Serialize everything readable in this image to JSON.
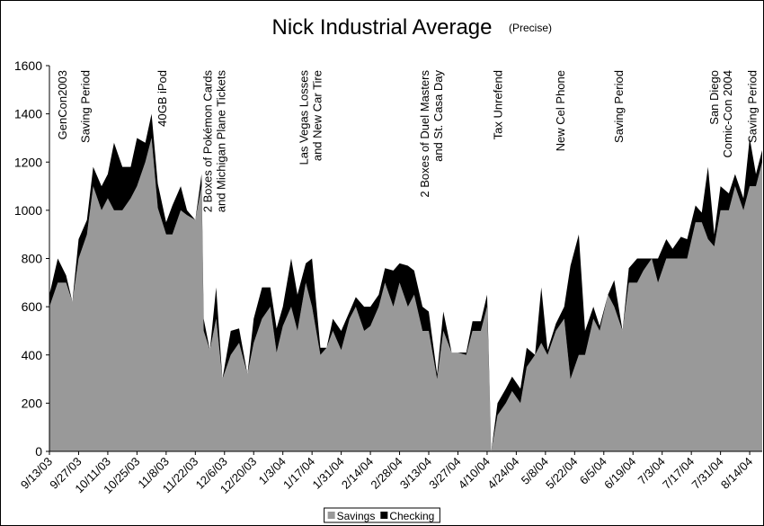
{
  "chart_data": {
    "type": "stacked_area",
    "title": "Nick Industrial Average",
    "subtitle": "(Precise)",
    "x": [
      "9/13/03",
      "9/17/03",
      "9/21/03",
      "9/24/03",
      "9/27/03",
      "10/1/03",
      "10/4/03",
      "10/8/03",
      "10/11/03",
      "10/14/03",
      "10/18/03",
      "10/22/03",
      "10/25/03",
      "10/29/03",
      "11/1/03",
      "11/4/03",
      "11/8/03",
      "11/11/03",
      "11/15/03",
      "11/18/03",
      "11/22/03",
      "11/25/03",
      "11/26/03",
      "11/29/03",
      "12/2/03",
      "12/5/03",
      "12/9/03",
      "12/13/03",
      "12/17/03",
      "12/20/03",
      "12/24/03",
      "12/28/03",
      "12/31/03",
      "1/3/04",
      "1/7/04",
      "1/10/04",
      "1/14/04",
      "1/17/04",
      "1/21/04",
      "1/24/04",
      "1/27/04",
      "1/31/04",
      "2/4/04",
      "2/7/04",
      "2/11/04",
      "2/14/04",
      "2/18/04",
      "2/21/04",
      "2/25/04",
      "2/28/04",
      "3/3/04",
      "3/6/04",
      "3/10/04",
      "3/13/04",
      "3/17/04",
      "3/20/04",
      "3/24/04",
      "3/27/04",
      "3/31/04",
      "4/3/04",
      "4/7/04",
      "4/10/04",
      "4/12/04",
      "4/15/04",
      "4/19/04",
      "4/22/04",
      "4/26/04",
      "4/29/04",
      "5/3/04",
      "5/6/04",
      "5/9/04",
      "5/13/04",
      "5/17/04",
      "5/20/04",
      "5/24/04",
      "5/27/04",
      "5/31/04",
      "6/3/04",
      "6/7/04",
      "6/10/04",
      "6/14/04",
      "6/17/04",
      "6/21/04",
      "6/24/04",
      "6/28/04",
      "7/1/04",
      "7/5/04",
      "7/8/04",
      "7/12/04",
      "7/15/04",
      "7/19/04",
      "7/22/04",
      "7/25/04",
      "7/28/04",
      "7/31/04",
      "8/4/04",
      "8/7/04",
      "8/11/04",
      "8/14/04",
      "8/17/04",
      "8/20/04"
    ],
    "series": [
      {
        "name": "Savings",
        "color": "#999999",
        "values": [
          600,
          700,
          700,
          620,
          800,
          900,
          1100,
          1000,
          1050,
          1000,
          1000,
          1050,
          1100,
          1200,
          1300,
          1010,
          900,
          900,
          1000,
          980,
          960,
          1100,
          500,
          420,
          550,
          300,
          400,
          450,
          320,
          450,
          550,
          600,
          410,
          520,
          600,
          500,
          700,
          600,
          400,
          430,
          500,
          420,
          550,
          600,
          500,
          520,
          600,
          700,
          600,
          700,
          600,
          650,
          500,
          500,
          300,
          500,
          410,
          410,
          400,
          500,
          500,
          600,
          0,
          150,
          200,
          250,
          200,
          350,
          400,
          450,
          400,
          500,
          550,
          300,
          400,
          400,
          550,
          500,
          650,
          600,
          500,
          700,
          700,
          750,
          800,
          700,
          800,
          800,
          800,
          800,
          950,
          950,
          880,
          850,
          1000,
          1000,
          1100,
          1000,
          1100,
          1100,
          1200
        ]
      },
      {
        "name": "Checking",
        "color": "#000000",
        "values": [
          50,
          100,
          30,
          0,
          80,
          60,
          80,
          100,
          100,
          280,
          180,
          130,
          200,
          80,
          100,
          100,
          50,
          120,
          100,
          20,
          0,
          50,
          50,
          0,
          130,
          0,
          100,
          60,
          0,
          100,
          130,
          80,
          100,
          80,
          200,
          150,
          80,
          200,
          30,
          0,
          50,
          80,
          30,
          40,
          100,
          80,
          50,
          60,
          150,
          80,
          170,
          100,
          100,
          80,
          20,
          80,
          0,
          0,
          10,
          40,
          40,
          50,
          0,
          50,
          60,
          60,
          60,
          80,
          0,
          230,
          20,
          30,
          50,
          470,
          500,
          100,
          50,
          20,
          0,
          110,
          0,
          60,
          100,
          50,
          0,
          100,
          80,
          40,
          90,
          80,
          70,
          40,
          300,
          50,
          100,
          70,
          50,
          50,
          200,
          50,
          50
        ]
      }
    ],
    "xlim": [
      "9/13/03",
      "8/20/04"
    ],
    "xticks": [
      "9/13/03",
      "9/27/03",
      "10/11/03",
      "10/25/03",
      "11/8/03",
      "11/22/03",
      "12/6/03",
      "12/20/03",
      "1/3/04",
      "1/17/04",
      "1/31/04",
      "2/14/04",
      "2/28/04",
      "3/13/04",
      "3/27/04",
      "4/10/04",
      "4/24/04",
      "5/8/04",
      "5/22/04",
      "6/5/04",
      "6/19/04",
      "7/3/04",
      "7/17/04",
      "7/31/04",
      "8/14/04"
    ],
    "ylim": [
      0,
      1600
    ],
    "yticks": [
      0,
      200,
      400,
      600,
      800,
      1000,
      1200,
      1400,
      1600
    ],
    "legend": "bottom",
    "annotations": [
      {
        "x": "9/19/03",
        "lines": [
          "GenCon2003"
        ]
      },
      {
        "x": "9/30/03",
        "lines": [
          "Saving Period"
        ]
      },
      {
        "x": "11/6/03",
        "lines": [
          "40GB iPod"
        ]
      },
      {
        "x": "12/1/03",
        "lines": [
          "2 Boxes of Pokémon Cards",
          "and Michigan Plane Tickets"
        ]
      },
      {
        "x": "1/16/04",
        "lines": [
          "Las Vegas Losses",
          "and New Car Tire"
        ]
      },
      {
        "x": "3/14/04",
        "lines": [
          "2 Boxes of Duel Masters",
          "and St. Casa Day"
        ]
      },
      {
        "x": "4/15/04",
        "lines": [
          "Tax Unrefend"
        ]
      },
      {
        "x": "5/15/04",
        "lines": [
          "New Cel Phone"
        ]
      },
      {
        "x": "6/12/04",
        "lines": [
          "Saving Period"
        ]
      },
      {
        "x": "7/31/04",
        "lines": [
          "San Diego",
          "Comic-Con 2004"
        ]
      },
      {
        "x": "8/15/04",
        "lines": [
          "Saving Period"
        ]
      }
    ]
  }
}
